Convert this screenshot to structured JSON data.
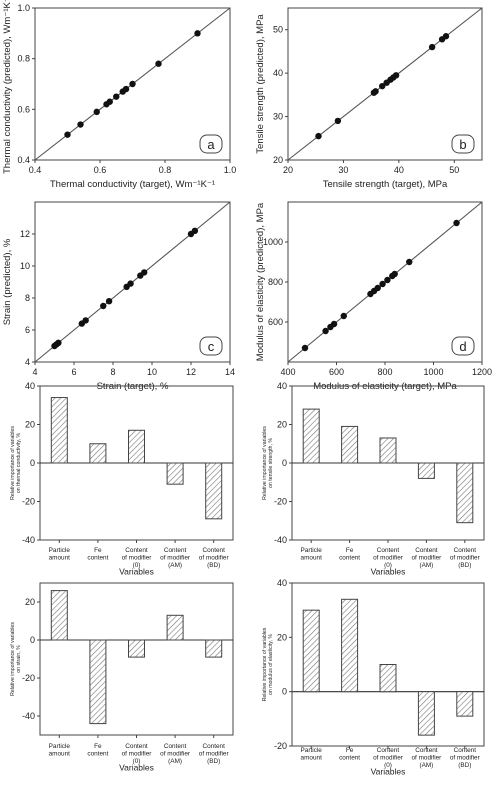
{
  "chart_data": [
    {
      "type": "scatter",
      "panel_label": "a",
      "xlabel": "Thermal conductivity (target), Wm⁻¹K⁻¹",
      "ylabel": "Thermal conductivity (predicted), Wm⁻¹K⁻¹",
      "xlim": [
        0.4,
        1.0
      ],
      "ylim": [
        0.4,
        1.0
      ],
      "xticks": [
        "0.4",
        "0.6",
        "0.8",
        "1.0"
      ],
      "yticks": [
        "0.4",
        "0.6",
        "0.8",
        "1.0"
      ],
      "diagonal": true,
      "points": [
        [
          0.5,
          0.5
        ],
        [
          0.54,
          0.54
        ],
        [
          0.59,
          0.59
        ],
        [
          0.62,
          0.62
        ],
        [
          0.63,
          0.63
        ],
        [
          0.65,
          0.65
        ],
        [
          0.67,
          0.67
        ],
        [
          0.68,
          0.68
        ],
        [
          0.7,
          0.7
        ],
        [
          0.78,
          0.78
        ],
        [
          0.9,
          0.9
        ]
      ]
    },
    {
      "type": "scatter",
      "panel_label": "b",
      "xlabel": "Tensile strength (target), MPa",
      "ylabel": "Tensile strength (predicted), MPa",
      "xlim": [
        20,
        55
      ],
      "ylim": [
        20,
        55
      ],
      "xticks": [
        "20",
        "30",
        "40",
        "50"
      ],
      "yticks": [
        "20",
        "30",
        "40",
        "50"
      ],
      "diagonal": true,
      "points": [
        [
          25.5,
          25.5
        ],
        [
          29,
          29
        ],
        [
          35.5,
          35.5
        ],
        [
          35.8,
          35.8
        ],
        [
          37,
          37
        ],
        [
          37.8,
          37.8
        ],
        [
          38.5,
          38.5
        ],
        [
          39,
          39
        ],
        [
          39.5,
          39.5
        ],
        [
          46,
          46
        ],
        [
          47.8,
          47.8
        ],
        [
          48.5,
          48.5
        ]
      ]
    },
    {
      "type": "scatter",
      "panel_label": "c",
      "xlabel": "Strain (target), %",
      "ylabel": "Strain (predicted), %",
      "xlim": [
        4,
        14
      ],
      "ylim": [
        4,
        14
      ],
      "xticks": [
        "4",
        "6",
        "8",
        "10",
        "12",
        "14"
      ],
      "yticks": [
        "4",
        "6",
        "8",
        "10",
        "12"
      ],
      "diagonal": true,
      "points": [
        [
          5,
          5
        ],
        [
          5.1,
          5.1
        ],
        [
          5.2,
          5.2
        ],
        [
          6.4,
          6.4
        ],
        [
          6.6,
          6.6
        ],
        [
          7.5,
          7.5
        ],
        [
          7.8,
          7.8
        ],
        [
          8.7,
          8.7
        ],
        [
          8.9,
          8.9
        ],
        [
          9.4,
          9.4
        ],
        [
          9.6,
          9.6
        ],
        [
          12,
          12
        ],
        [
          12.2,
          12.2
        ]
      ]
    },
    {
      "type": "scatter",
      "panel_label": "d",
      "xlabel": "Modulus of elasticity (target), MPa",
      "ylabel": "Modulus of elasticity (predicted), MPa",
      "xlim": [
        400,
        1200
      ],
      "ylim": [
        400,
        1200
      ],
      "xticks": [
        "400",
        "600",
        "800",
        "1000",
        "1200"
      ],
      "yticks": [
        "600",
        "800",
        "1000"
      ],
      "diagonal": true,
      "points": [
        [
          470,
          470
        ],
        [
          555,
          555
        ],
        [
          575,
          575
        ],
        [
          590,
          590
        ],
        [
          630,
          630
        ],
        [
          740,
          740
        ],
        [
          755,
          755
        ],
        [
          770,
          770
        ],
        [
          790,
          790
        ],
        [
          810,
          810
        ],
        [
          830,
          830
        ],
        [
          840,
          840
        ],
        [
          900,
          900
        ],
        [
          1095,
          1095
        ]
      ]
    },
    {
      "type": "bar",
      "xlabel": "Variables",
      "ylabel": "Relative importance of variables on thermal conductivity, %",
      "ylim": [
        -40,
        40
      ],
      "yticks": [
        "-40",
        "-20",
        "0",
        "20",
        "40"
      ],
      "categories": [
        "Particle amount",
        "Fe content",
        "Content of modifier (0)",
        "Content of modifier (AM)",
        "Content of modifier (BD)"
      ],
      "values": [
        34,
        10,
        17,
        -11,
        -29
      ]
    },
    {
      "type": "bar",
      "xlabel": "Variables",
      "ylabel": "Relative importance of variables on tensile strength, %",
      "ylim": [
        -40,
        40
      ],
      "yticks": [
        "-40",
        "-20",
        "0",
        "20",
        "40"
      ],
      "categories": [
        "Particle amount",
        "Fe content",
        "Content of modifier (0)",
        "Content of modifier (AM)",
        "Content of modifier (BD)"
      ],
      "values": [
        28,
        19,
        13,
        -8,
        -31
      ]
    },
    {
      "type": "bar",
      "xlabel": "Variables",
      "ylabel": "Relative importance of variables on strain, %",
      "ylim": [
        -50,
        30
      ],
      "yticks": [
        "-40",
        "-20",
        "0",
        "20"
      ],
      "categories": [
        "Particle amount",
        "Fe content",
        "Content of modifier (0)",
        "Content of modifier (AM)",
        "Content of modifier (BD)"
      ],
      "values": [
        26,
        -44,
        -9,
        13,
        -9
      ]
    },
    {
      "type": "bar",
      "xlabel": "Variables",
      "ylabel": "Relative importance of variables on modulus of elasticity, %",
      "ylim": [
        -20,
        40
      ],
      "yticks": [
        "-20",
        "0",
        "20",
        "40"
      ],
      "categories": [
        "Particle amount",
        "Fe content",
        "Content of modifier (0)",
        "Content of modifier (AM)",
        "Content of modifier (BD)"
      ],
      "values": [
        30,
        34,
        10,
        -16,
        -9
      ]
    }
  ]
}
